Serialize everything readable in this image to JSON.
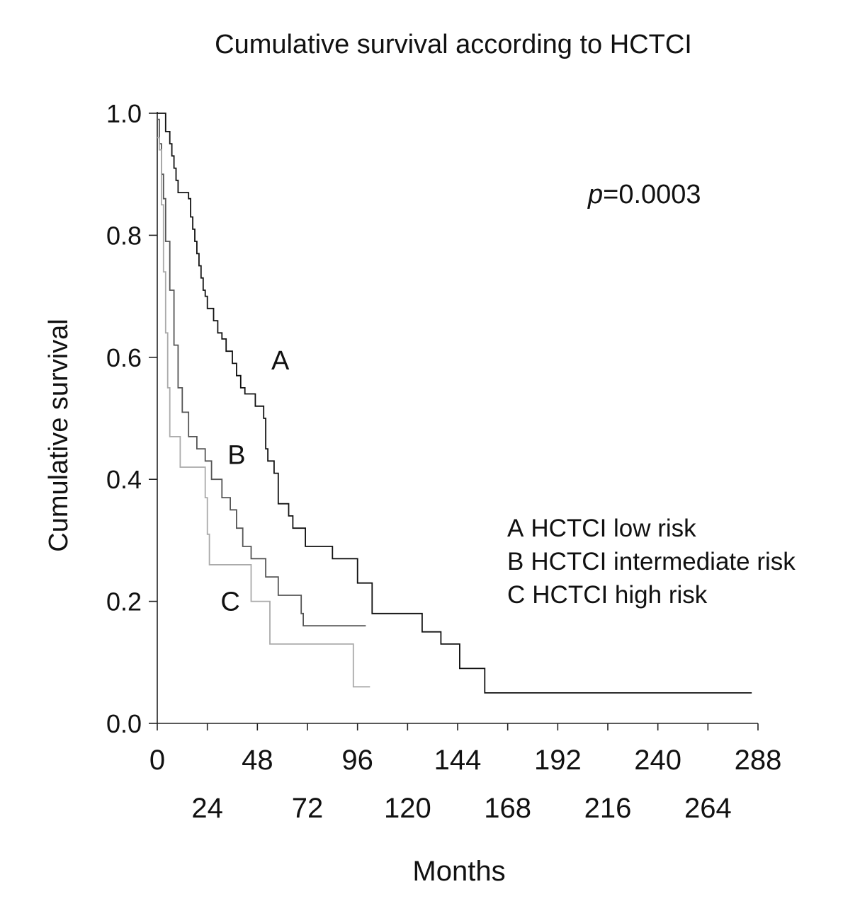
{
  "chart_data": {
    "type": "line",
    "step": true,
    "title": "Cumulative survival according to HCTCI",
    "xlabel": "Months",
    "ylabel": "Cumulative survival",
    "xlim": [
      0,
      288
    ],
    "ylim": [
      0,
      1
    ],
    "x_ticks_upper": [
      "0",
      "48",
      "96",
      "144",
      "192",
      "240",
      "288"
    ],
    "x_ticks_lower": [
      "24",
      "72",
      "120",
      "168",
      "216",
      "264"
    ],
    "y_ticks": [
      "0.0",
      "0.2",
      "0.4",
      "0.6",
      "0.8",
      "1.0"
    ],
    "annotation": {
      "prefix": "p",
      "text": "=0.0003"
    },
    "legend": [
      {
        "key": "A",
        "text": "HCTCI low risk"
      },
      {
        "key": "B",
        "text": "HCTCI intermediate risk"
      },
      {
        "key": "C",
        "text": "HCTCI high risk"
      }
    ],
    "series": [
      {
        "name": "A",
        "label": "A",
        "description": "HCTCI low risk",
        "color": "#111111",
        "label_pos": [
          59,
          0.58
        ],
        "points": [
          [
            0,
            1.0
          ],
          [
            4,
            1.0
          ],
          [
            4,
            0.97
          ],
          [
            6,
            0.97
          ],
          [
            6,
            0.95
          ],
          [
            7,
            0.95
          ],
          [
            7,
            0.93
          ],
          [
            8,
            0.93
          ],
          [
            8,
            0.91
          ],
          [
            9,
            0.91
          ],
          [
            9,
            0.89
          ],
          [
            10,
            0.89
          ],
          [
            10,
            0.87
          ],
          [
            15,
            0.87
          ],
          [
            15,
            0.86
          ],
          [
            16,
            0.86
          ],
          [
            16,
            0.83
          ],
          [
            17,
            0.83
          ],
          [
            17,
            0.81
          ],
          [
            18,
            0.81
          ],
          [
            18,
            0.79
          ],
          [
            19,
            0.79
          ],
          [
            19,
            0.77
          ],
          [
            20,
            0.77
          ],
          [
            20,
            0.75
          ],
          [
            21,
            0.75
          ],
          [
            21,
            0.73
          ],
          [
            22,
            0.73
          ],
          [
            22,
            0.71
          ],
          [
            23,
            0.71
          ],
          [
            23,
            0.7
          ],
          [
            24,
            0.7
          ],
          [
            24,
            0.68
          ],
          [
            27,
            0.68
          ],
          [
            27,
            0.66
          ],
          [
            29,
            0.66
          ],
          [
            29,
            0.64
          ],
          [
            31,
            0.64
          ],
          [
            31,
            0.63
          ],
          [
            33,
            0.63
          ],
          [
            33,
            0.61
          ],
          [
            36,
            0.61
          ],
          [
            36,
            0.59
          ],
          [
            38,
            0.59
          ],
          [
            38,
            0.57
          ],
          [
            40,
            0.57
          ],
          [
            40,
            0.55
          ],
          [
            42,
            0.55
          ],
          [
            42,
            0.54
          ],
          [
            47,
            0.54
          ],
          [
            47,
            0.52
          ],
          [
            51,
            0.52
          ],
          [
            51,
            0.5
          ],
          [
            52,
            0.5
          ],
          [
            52,
            0.45
          ],
          [
            53,
            0.45
          ],
          [
            53,
            0.43
          ],
          [
            56,
            0.43
          ],
          [
            56,
            0.41
          ],
          [
            58,
            0.41
          ],
          [
            58,
            0.36
          ],
          [
            63,
            0.36
          ],
          [
            63,
            0.34
          ],
          [
            65,
            0.34
          ],
          [
            65,
            0.32
          ],
          [
            71,
            0.32
          ],
          [
            71,
            0.29
          ],
          [
            84,
            0.29
          ],
          [
            84,
            0.27
          ],
          [
            96,
            0.27
          ],
          [
            96,
            0.23
          ],
          [
            103,
            0.23
          ],
          [
            103,
            0.18
          ],
          [
            127,
            0.18
          ],
          [
            127,
            0.15
          ],
          [
            136,
            0.15
          ],
          [
            136,
            0.13
          ],
          [
            145,
            0.13
          ],
          [
            145,
            0.09
          ],
          [
            157,
            0.09
          ],
          [
            157,
            0.05
          ],
          [
            285,
            0.05
          ]
        ]
      },
      {
        "name": "B",
        "label": "B",
        "description": "HCTCI intermediate risk",
        "color": "#555555",
        "label_pos": [
          38,
          0.425
        ],
        "points": [
          [
            0,
            0.99
          ],
          [
            1,
            0.99
          ],
          [
            1,
            0.95
          ],
          [
            2,
            0.95
          ],
          [
            2,
            0.9
          ],
          [
            3,
            0.9
          ],
          [
            3,
            0.86
          ],
          [
            4,
            0.86
          ],
          [
            4,
            0.79
          ],
          [
            6,
            0.79
          ],
          [
            6,
            0.71
          ],
          [
            8,
            0.71
          ],
          [
            8,
            0.62
          ],
          [
            10,
            0.62
          ],
          [
            10,
            0.55
          ],
          [
            12,
            0.55
          ],
          [
            12,
            0.51
          ],
          [
            15,
            0.51
          ],
          [
            15,
            0.47
          ],
          [
            19,
            0.47
          ],
          [
            19,
            0.45
          ],
          [
            23,
            0.45
          ],
          [
            23,
            0.43
          ],
          [
            26,
            0.43
          ],
          [
            26,
            0.4
          ],
          [
            31,
            0.4
          ],
          [
            31,
            0.37
          ],
          [
            35,
            0.37
          ],
          [
            35,
            0.35
          ],
          [
            38,
            0.35
          ],
          [
            38,
            0.32
          ],
          [
            41,
            0.32
          ],
          [
            41,
            0.29
          ],
          [
            45,
            0.29
          ],
          [
            45,
            0.27
          ],
          [
            52,
            0.27
          ],
          [
            52,
            0.24
          ],
          [
            58,
            0.24
          ],
          [
            58,
            0.21
          ],
          [
            69,
            0.21
          ],
          [
            69,
            0.18
          ],
          [
            70,
            0.18
          ],
          [
            70,
            0.16
          ],
          [
            100,
            0.16
          ]
        ]
      },
      {
        "name": "C",
        "label": "C",
        "description": "HCTCI high risk",
        "color": "#aaaaaa",
        "label_pos": [
          35,
          0.185
        ],
        "points": [
          [
            0,
            0.96
          ],
          [
            1,
            0.96
          ],
          [
            1,
            0.94
          ],
          [
            2,
            0.94
          ],
          [
            2,
            0.85
          ],
          [
            3,
            0.85
          ],
          [
            3,
            0.74
          ],
          [
            4,
            0.74
          ],
          [
            4,
            0.64
          ],
          [
            5,
            0.64
          ],
          [
            5,
            0.55
          ],
          [
            6,
            0.55
          ],
          [
            6,
            0.47
          ],
          [
            11,
            0.47
          ],
          [
            11,
            0.42
          ],
          [
            23,
            0.42
          ],
          [
            23,
            0.37
          ],
          [
            24,
            0.37
          ],
          [
            24,
            0.31
          ],
          [
            25,
            0.31
          ],
          [
            25,
            0.26
          ],
          [
            45,
            0.26
          ],
          [
            45,
            0.2
          ],
          [
            54,
            0.2
          ],
          [
            54,
            0.13
          ],
          [
            94,
            0.13
          ],
          [
            94,
            0.06
          ],
          [
            102,
            0.06
          ]
        ]
      }
    ]
  }
}
